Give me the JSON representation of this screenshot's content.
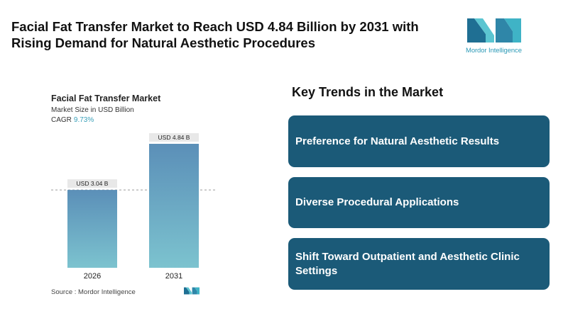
{
  "headline": "Facial Fat Transfer Market to Reach USD 4.84 Billion by 2031 with Rising Demand for Natural Aesthetic Procedures",
  "logo": {
    "text": "Mordor Intelligence",
    "color": "#2c9ab7"
  },
  "chart_data": {
    "type": "bar",
    "title": "Facial Fat Transfer Market",
    "subtitle": "Market Size in USD Billion",
    "cagr_label": "CAGR",
    "cagr_value": "9.73%",
    "categories": [
      "2026",
      "2031"
    ],
    "values": [
      3.04,
      4.84
    ],
    "data_labels": [
      "USD 3.04 B",
      "USD 4.84 B"
    ],
    "ylim": [
      0,
      5.2
    ],
    "reference_line": 3.04,
    "colors": {
      "bar_top": "#5b8fb8",
      "bar_bottom": "#7cc3cf"
    },
    "source": "Source :  Mordor Intelligence"
  },
  "trends": {
    "title": "Key Trends in the Market",
    "items": [
      "Preference for Natural Aesthetic Results",
      "Diverse Procedural Applications",
      "Shift Toward Outpatient and Aesthetic Clinic Settings"
    ],
    "card_color": "#1b5a78"
  }
}
